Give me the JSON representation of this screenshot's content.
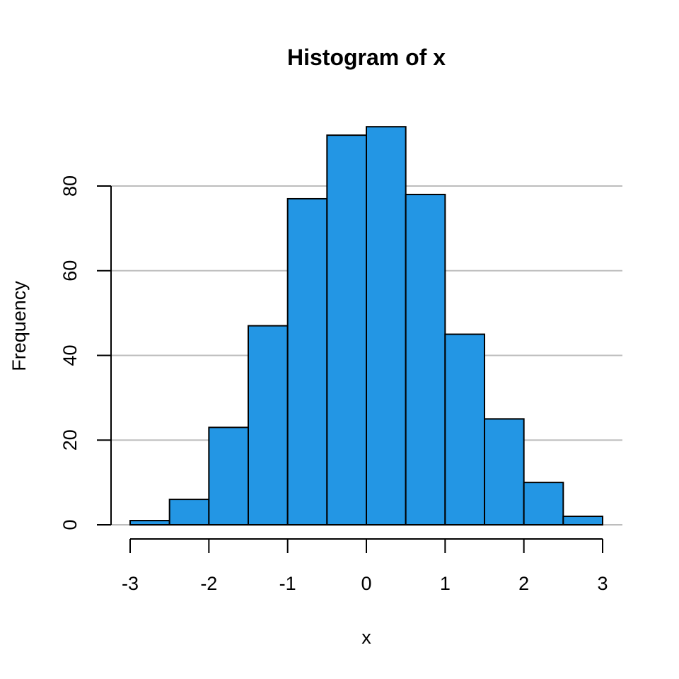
{
  "chart_data": {
    "type": "bar",
    "title": "Histogram of x",
    "xlabel": "x",
    "ylabel": "Frequency",
    "bins": [
      {
        "start": -3.0,
        "end": -2.5,
        "count": 1
      },
      {
        "start": -2.5,
        "end": -2.0,
        "count": 6
      },
      {
        "start": -2.0,
        "end": -1.5,
        "count": 23
      },
      {
        "start": -1.5,
        "end": -1.0,
        "count": 47
      },
      {
        "start": -1.0,
        "end": -0.5,
        "count": 77
      },
      {
        "start": -0.5,
        "end": 0.0,
        "count": 92
      },
      {
        "start": 0.0,
        "end": 0.5,
        "count": 94
      },
      {
        "start": 0.5,
        "end": 1.0,
        "count": 78
      },
      {
        "start": 1.0,
        "end": 1.5,
        "count": 45
      },
      {
        "start": 1.5,
        "end": 2.0,
        "count": 25
      },
      {
        "start": 2.0,
        "end": 2.5,
        "count": 10
      },
      {
        "start": 2.5,
        "end": 3.0,
        "count": 2
      }
    ],
    "xticks": [
      "-3",
      "-2",
      "-1",
      "0",
      "1",
      "2",
      "3"
    ],
    "yticks": [
      "0",
      "20",
      "40",
      "60",
      "80"
    ],
    "xlim": [
      -3,
      3
    ],
    "ylim": [
      0,
      94
    ],
    "grid": "horizontal",
    "bar_color": "#2396e4",
    "grid_color": "#bdbdbd"
  }
}
